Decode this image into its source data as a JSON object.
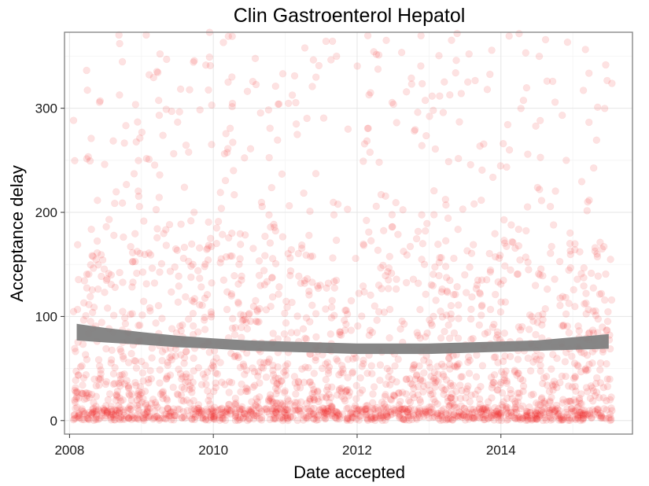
{
  "chart_data": {
    "type": "scatter",
    "title": "Clin Gastroenterol Hepatol",
    "xlabel": "Date accepted",
    "ylabel": "Acceptance delay",
    "x_unit": "year",
    "xlim": [
      2007.93,
      2015.83
    ],
    "ylim": [
      -13,
      373
    ],
    "x_ticks": [
      2008,
      2010,
      2012,
      2014
    ],
    "x_tick_labels": [
      "2008",
      "2010",
      "2012",
      "2014"
    ],
    "y_ticks": [
      0,
      100,
      200,
      300
    ],
    "y_tick_labels": [
      "0",
      "100",
      "200",
      "300"
    ],
    "grid": true,
    "legend": "none",
    "point_color": "#ee2222",
    "point_opacity": 0.13,
    "smooth_color": "#808080",
    "series": [
      {
        "kind": "points",
        "n_approx": 2400,
        "description_stats": {
          "x_range": [
            2008.05,
            2015.55
          ],
          "y_range": [
            0,
            373
          ],
          "dense_band_near_zero": true
        }
      },
      {
        "kind": "smooth",
        "x": [
          2008.1,
          2008.5,
          2009.0,
          2009.5,
          2010.0,
          2010.5,
          2011.0,
          2011.5,
          2012.0,
          2012.5,
          2013.0,
          2013.5,
          2014.0,
          2014.5,
          2015.0,
          2015.5
        ],
        "y": [
          85,
          82,
          79,
          76,
          74,
          72,
          71,
          70,
          69,
          69,
          69,
          70,
          71,
          72,
          74,
          76
        ],
        "band_halfwidth": [
          8,
          7,
          6,
          5.5,
          5,
          5,
          5,
          5,
          5,
          5,
          5,
          5,
          5,
          5,
          6,
          7
        ]
      }
    ]
  }
}
